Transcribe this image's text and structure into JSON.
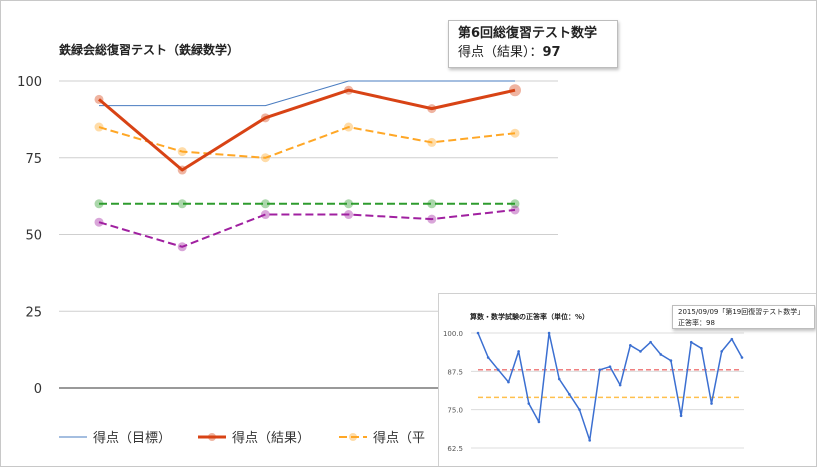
{
  "chart_data": [
    {
      "type": "line",
      "title": "鉄緑会総復習テスト（鉄緑数学）",
      "xlabel": "",
      "ylabel": "",
      "ylim": [
        0,
        100
      ],
      "yticks": [
        "100",
        "75",
        "50",
        "25",
        "0"
      ],
      "grid": true,
      "legend": "bottom",
      "x": [
        1,
        2,
        3,
        4,
        5,
        6
      ],
      "series": [
        {
          "name": "得点（目標）",
          "values": [
            92,
            92,
            92,
            100,
            100,
            100
          ],
          "color": "#4a7cc0",
          "style": "thin-solid"
        },
        {
          "name": "得点（結果）",
          "values": [
            94,
            71,
            88,
            97,
            91,
            97
          ],
          "color": "#d84315",
          "style": "thick-solid"
        },
        {
          "name": "得点（平均）",
          "values": [
            85,
            77,
            75,
            85,
            80,
            83
          ],
          "color": "#ffa726",
          "style": "dashed"
        },
        {
          "name": "",
          "values": [
            60,
            60,
            60,
            60,
            60,
            60
          ],
          "color": "#2e9c2e",
          "style": "dashed"
        },
        {
          "name": "",
          "values": [
            54,
            46,
            56.5,
            56.5,
            55,
            58
          ],
          "color": "#a020a0",
          "style": "dashed"
        }
      ],
      "legend_entries": [
        "得点（目標）",
        "得点（結果）",
        "得点（平"
      ],
      "tooltip": {
        "title": "第6回総復習テスト数学",
        "label": "得点（結果）：",
        "value": "97"
      }
    },
    {
      "type": "line",
      "title": "算数・数学試験の正答率（単位：%）",
      "ylim": [
        62.5,
        100
      ],
      "yticks": [
        "100.0",
        "87.5",
        "75.0",
        "62.5"
      ],
      "grid": true,
      "series": [
        {
          "name": "",
          "color": "#3b6fd1",
          "values": [
            100,
            92,
            88,
            84,
            94,
            77,
            71,
            100,
            85,
            80,
            75,
            65,
            88,
            89,
            83,
            96,
            94,
            97,
            93,
            91,
            73,
            97,
            95,
            77,
            94,
            98,
            92
          ]
        }
      ],
      "reference_lines": [
        {
          "value": 88,
          "color": "#f08080"
        },
        {
          "value": 79,
          "color": "#ffc04d"
        }
      ],
      "tooltip": {
        "title": "2015/09/09「第19回復習テスト数学」",
        "label": "正答率：",
        "value": "98"
      }
    }
  ]
}
